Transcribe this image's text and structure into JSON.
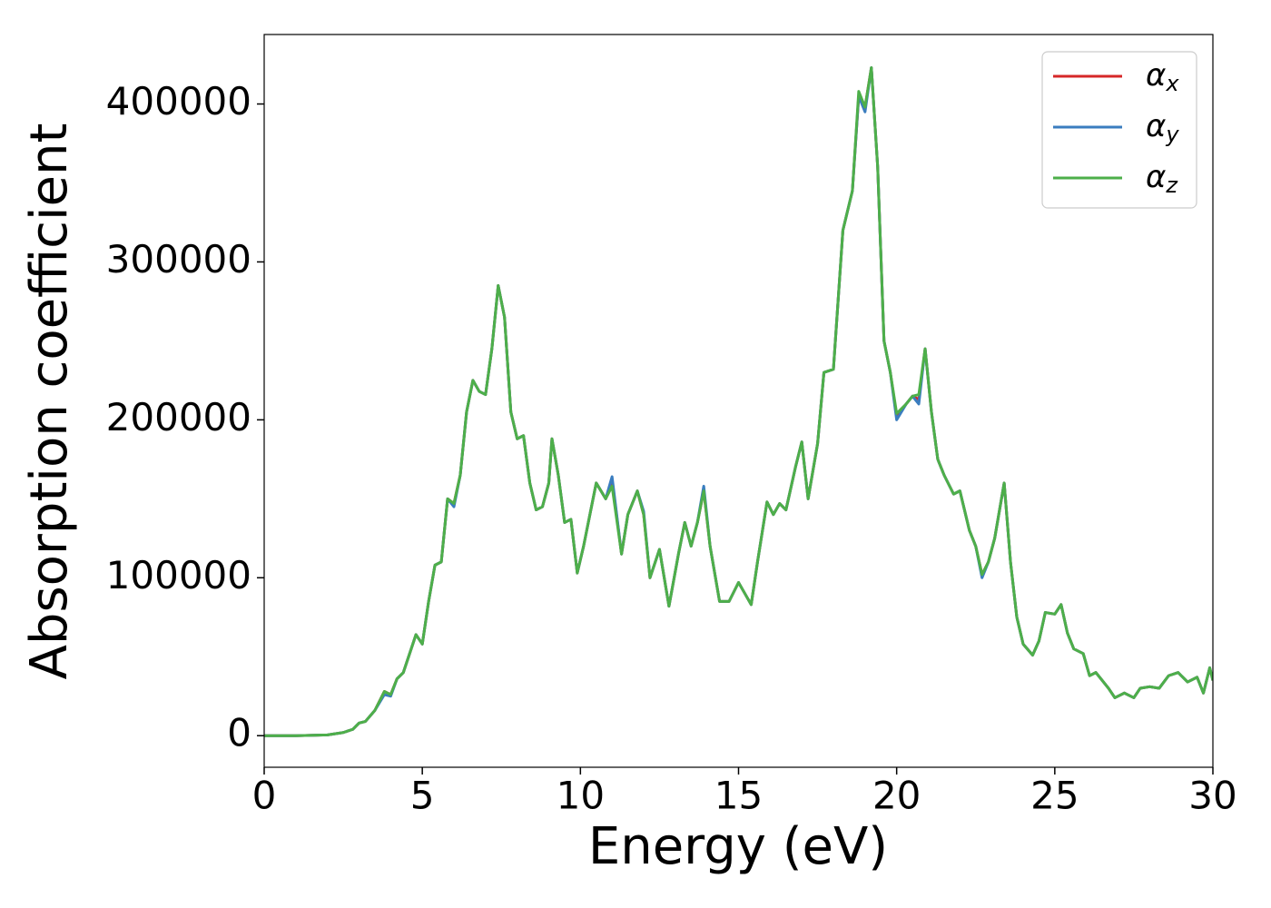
{
  "chart_data": {
    "type": "line",
    "xlabel": "Energy (eV)",
    "ylabel": "Absorption coefficient",
    "x": [
      0,
      1,
      2,
      2.5,
      2.8,
      3,
      3.2,
      3.5,
      3.8,
      4,
      4.2,
      4.4,
      4.6,
      4.8,
      5,
      5.2,
      5.4,
      5.6,
      5.8,
      6,
      6.2,
      6.4,
      6.6,
      6.8,
      7,
      7.2,
      7.4,
      7.6,
      7.8,
      8,
      8.2,
      8.4,
      8.6,
      8.8,
      9,
      9.1,
      9.3,
      9.5,
      9.7,
      9.9,
      10.1,
      10.3,
      10.5,
      10.8,
      11,
      11.3,
      11.5,
      11.8,
      12,
      12.2,
      12.5,
      12.8,
      13.1,
      13.3,
      13.5,
      13.7,
      13.9,
      14.1,
      14.4,
      14.7,
      15,
      15.2,
      15.4,
      15.6,
      15.9,
      16.1,
      16.3,
      16.5,
      16.8,
      17,
      17.2,
      17.5,
      17.7,
      18,
      18.3,
      18.6,
      18.8,
      19,
      19.2,
      19.4,
      19.6,
      19.8,
      20,
      20.3,
      20.5,
      20.7,
      20.9,
      21.1,
      21.3,
      21.5,
      21.8,
      22,
      22.3,
      22.5,
      22.7,
      22.9,
      23.1,
      23.4,
      23.6,
      23.8,
      24,
      24.3,
      24.5,
      24.7,
      25,
      25.2,
      25.4,
      25.6,
      25.9,
      26.1,
      26.3,
      26.7,
      26.9,
      27.2,
      27.5,
      27.7,
      28,
      28.3,
      28.6,
      28.9,
      29.2,
      29.5,
      29.7,
      29.9,
      30
    ],
    "series": [
      {
        "name": "αx",
        "color": "#d62728",
        "values": [
          0,
          0,
          500,
          2000,
          4000,
          8000,
          9000,
          16000,
          28000,
          26000,
          36000,
          40000,
          52000,
          64000,
          58000,
          85000,
          108000,
          110000,
          150000,
          147000,
          165000,
          205000,
          225000,
          218000,
          216000,
          245000,
          285000,
          265000,
          205000,
          188000,
          190000,
          160000,
          143000,
          145000,
          160000,
          188000,
          165000,
          135000,
          137000,
          103000,
          120000,
          140000,
          160000,
          150000,
          162000,
          115000,
          140000,
          155000,
          140000,
          100000,
          118000,
          82000,
          115000,
          135000,
          120000,
          135000,
          155000,
          120000,
          85000,
          85000,
          97000,
          90000,
          83000,
          110000,
          148000,
          140000,
          147000,
          143000,
          170000,
          186000,
          150000,
          185000,
          230000,
          232000,
          320000,
          345000,
          405000,
          398000,
          423000,
          360000,
          250000,
          230000,
          202000,
          210000,
          215000,
          213000,
          245000,
          205000,
          175000,
          165000,
          153000,
          155000,
          130000,
          120000,
          102000,
          110000,
          125000,
          160000,
          110000,
          75000,
          58000,
          51000,
          60000,
          78000,
          77000,
          83000,
          65000,
          55000,
          52000,
          38000,
          40000,
          30000,
          24000,
          27000,
          24000,
          30000,
          31000,
          30000,
          38000,
          40000,
          34000,
          37000,
          27000,
          43000,
          35000
        ]
      },
      {
        "name": "αy",
        "color": "#3a7dbf",
        "values": [
          0,
          0,
          500,
          2000,
          4000,
          8000,
          9000,
          16000,
          26000,
          25000,
          36000,
          40000,
          52000,
          64000,
          58000,
          85000,
          108000,
          110000,
          150000,
          145000,
          165000,
          205000,
          225000,
          218000,
          216000,
          245000,
          285000,
          265000,
          205000,
          188000,
          190000,
          160000,
          143000,
          145000,
          160000,
          188000,
          165000,
          135000,
          137000,
          103000,
          120000,
          140000,
          160000,
          150000,
          164000,
          115000,
          140000,
          155000,
          142000,
          100000,
          118000,
          82000,
          115000,
          135000,
          120000,
          135000,
          158000,
          120000,
          85000,
          85000,
          97000,
          90000,
          83000,
          110000,
          148000,
          140000,
          147000,
          143000,
          170000,
          186000,
          150000,
          185000,
          230000,
          232000,
          320000,
          345000,
          405000,
          395000,
          423000,
          360000,
          250000,
          230000,
          200000,
          210000,
          215000,
          210000,
          245000,
          205000,
          175000,
          165000,
          153000,
          155000,
          130000,
          120000,
          100000,
          110000,
          125000,
          160000,
          110000,
          75000,
          58000,
          51000,
          60000,
          78000,
          77000,
          83000,
          65000,
          55000,
          52000,
          38000,
          40000,
          30000,
          24000,
          27000,
          24000,
          30000,
          31000,
          30000,
          38000,
          40000,
          34000,
          37000,
          27000,
          43000,
          35000
        ]
      },
      {
        "name": "αz",
        "color": "#4daf4a",
        "values": [
          0,
          0,
          500,
          2000,
          4000,
          8000,
          9000,
          16000,
          28000,
          26000,
          36000,
          40000,
          52000,
          64000,
          58000,
          85000,
          108000,
          110000,
          150000,
          147000,
          165000,
          205000,
          225000,
          218000,
          216000,
          245000,
          285000,
          265000,
          205000,
          188000,
          190000,
          160000,
          143000,
          145000,
          160000,
          188000,
          165000,
          135000,
          137000,
          103000,
          120000,
          140000,
          160000,
          150000,
          158000,
          115000,
          140000,
          155000,
          140000,
          100000,
          118000,
          82000,
          115000,
          135000,
          120000,
          135000,
          155000,
          120000,
          85000,
          85000,
          97000,
          90000,
          83000,
          110000,
          148000,
          140000,
          147000,
          143000,
          170000,
          186000,
          150000,
          185000,
          230000,
          232000,
          320000,
          345000,
          408000,
          398000,
          423000,
          360000,
          250000,
          230000,
          204000,
          210000,
          215000,
          216000,
          245000,
          205000,
          175000,
          165000,
          153000,
          155000,
          130000,
          120000,
          102000,
          110000,
          125000,
          160000,
          110000,
          75000,
          58000,
          51000,
          60000,
          78000,
          77000,
          83000,
          65000,
          55000,
          52000,
          38000,
          40000,
          30000,
          24000,
          27000,
          24000,
          30000,
          31000,
          30000,
          38000,
          40000,
          34000,
          37000,
          27000,
          43000,
          35000
        ]
      }
    ],
    "xlim": [
      0,
      30
    ],
    "xticks": [
      0,
      5,
      10,
      15,
      20,
      25,
      30
    ],
    "ylim": [
      -20000,
      444000
    ],
    "yticks": [
      0,
      100000,
      200000,
      300000,
      400000
    ],
    "legend": "upper right"
  }
}
